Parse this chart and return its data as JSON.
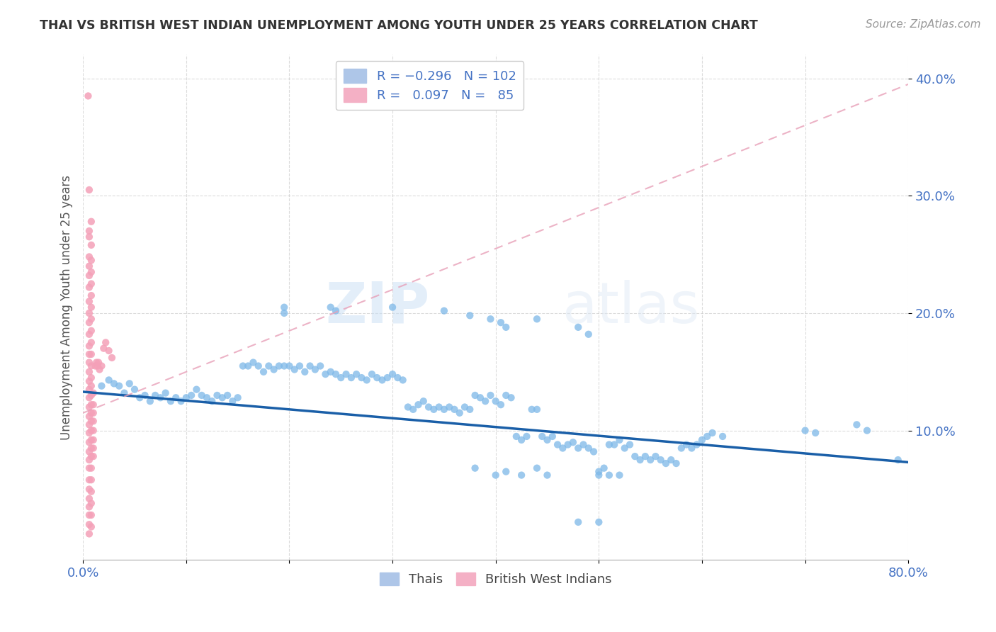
{
  "title": "THAI VS BRITISH WEST INDIAN UNEMPLOYMENT AMONG YOUTH UNDER 25 YEARS CORRELATION CHART",
  "source": "Source: ZipAtlas.com",
  "ylabel": "Unemployment Among Youth under 25 years",
  "yticks": [
    0.1,
    0.2,
    0.3,
    0.4
  ],
  "ytick_labels": [
    "10.0%",
    "20.0%",
    "30.0%",
    "40.0%"
  ],
  "xlim": [
    0.0,
    0.8
  ],
  "ylim": [
    -0.01,
    0.42
  ],
  "watermark_zip": "ZIP",
  "watermark_atlas": "atlas",
  "thai_dots_color": "#7db8e8",
  "bwi_dots_color": "#f4a0b8",
  "thai_line_color": "#1a5fa8",
  "bwi_line_color": "#e8a0b8",
  "thai_line_x0": 0.0,
  "thai_line_x1": 0.8,
  "thai_line_y0": 0.133,
  "thai_line_y1": 0.073,
  "bwi_line_x0": 0.0,
  "bwi_line_x1": 0.8,
  "bwi_line_y0": 0.115,
  "bwi_line_y1": 0.395,
  "thai_scatter": [
    [
      0.018,
      0.138
    ],
    [
      0.025,
      0.143
    ],
    [
      0.03,
      0.14
    ],
    [
      0.035,
      0.138
    ],
    [
      0.04,
      0.132
    ],
    [
      0.045,
      0.14
    ],
    [
      0.05,
      0.135
    ],
    [
      0.055,
      0.128
    ],
    [
      0.06,
      0.13
    ],
    [
      0.065,
      0.125
    ],
    [
      0.07,
      0.13
    ],
    [
      0.075,
      0.128
    ],
    [
      0.08,
      0.132
    ],
    [
      0.085,
      0.125
    ],
    [
      0.09,
      0.128
    ],
    [
      0.095,
      0.125
    ],
    [
      0.1,
      0.128
    ],
    [
      0.105,
      0.13
    ],
    [
      0.11,
      0.135
    ],
    [
      0.115,
      0.13
    ],
    [
      0.12,
      0.128
    ],
    [
      0.125,
      0.125
    ],
    [
      0.13,
      0.13
    ],
    [
      0.135,
      0.128
    ],
    [
      0.14,
      0.13
    ],
    [
      0.145,
      0.125
    ],
    [
      0.15,
      0.128
    ],
    [
      0.155,
      0.155
    ],
    [
      0.16,
      0.155
    ],
    [
      0.165,
      0.158
    ],
    [
      0.17,
      0.155
    ],
    [
      0.175,
      0.15
    ],
    [
      0.18,
      0.155
    ],
    [
      0.185,
      0.152
    ],
    [
      0.19,
      0.155
    ],
    [
      0.195,
      0.155
    ],
    [
      0.2,
      0.155
    ],
    [
      0.205,
      0.152
    ],
    [
      0.21,
      0.155
    ],
    [
      0.215,
      0.15
    ],
    [
      0.22,
      0.155
    ],
    [
      0.225,
      0.152
    ],
    [
      0.23,
      0.155
    ],
    [
      0.235,
      0.148
    ],
    [
      0.24,
      0.15
    ],
    [
      0.245,
      0.148
    ],
    [
      0.25,
      0.145
    ],
    [
      0.255,
      0.148
    ],
    [
      0.26,
      0.145
    ],
    [
      0.265,
      0.148
    ],
    [
      0.27,
      0.145
    ],
    [
      0.275,
      0.143
    ],
    [
      0.28,
      0.148
    ],
    [
      0.285,
      0.145
    ],
    [
      0.29,
      0.143
    ],
    [
      0.295,
      0.145
    ],
    [
      0.3,
      0.148
    ],
    [
      0.305,
      0.145
    ],
    [
      0.31,
      0.143
    ],
    [
      0.315,
      0.12
    ],
    [
      0.32,
      0.118
    ],
    [
      0.325,
      0.122
    ],
    [
      0.33,
      0.125
    ],
    [
      0.335,
      0.12
    ],
    [
      0.34,
      0.118
    ],
    [
      0.345,
      0.12
    ],
    [
      0.35,
      0.118
    ],
    [
      0.355,
      0.12
    ],
    [
      0.36,
      0.118
    ],
    [
      0.365,
      0.115
    ],
    [
      0.37,
      0.12
    ],
    [
      0.375,
      0.118
    ],
    [
      0.38,
      0.13
    ],
    [
      0.385,
      0.128
    ],
    [
      0.39,
      0.125
    ],
    [
      0.395,
      0.13
    ],
    [
      0.4,
      0.125
    ],
    [
      0.405,
      0.122
    ],
    [
      0.41,
      0.13
    ],
    [
      0.415,
      0.128
    ],
    [
      0.42,
      0.095
    ],
    [
      0.425,
      0.092
    ],
    [
      0.43,
      0.095
    ],
    [
      0.435,
      0.118
    ],
    [
      0.44,
      0.118
    ],
    [
      0.445,
      0.095
    ],
    [
      0.45,
      0.092
    ],
    [
      0.455,
      0.095
    ],
    [
      0.46,
      0.088
    ],
    [
      0.465,
      0.085
    ],
    [
      0.47,
      0.088
    ],
    [
      0.475,
      0.09
    ],
    [
      0.48,
      0.085
    ],
    [
      0.485,
      0.088
    ],
    [
      0.49,
      0.085
    ],
    [
      0.495,
      0.082
    ],
    [
      0.5,
      0.065
    ],
    [
      0.505,
      0.068
    ],
    [
      0.51,
      0.088
    ],
    [
      0.515,
      0.088
    ],
    [
      0.52,
      0.092
    ],
    [
      0.525,
      0.085
    ],
    [
      0.53,
      0.088
    ],
    [
      0.535,
      0.078
    ],
    [
      0.54,
      0.075
    ],
    [
      0.545,
      0.078
    ],
    [
      0.55,
      0.075
    ],
    [
      0.555,
      0.078
    ],
    [
      0.56,
      0.075
    ],
    [
      0.565,
      0.072
    ],
    [
      0.57,
      0.075
    ],
    [
      0.575,
      0.072
    ],
    [
      0.58,
      0.085
    ],
    [
      0.585,
      0.088
    ],
    [
      0.59,
      0.085
    ],
    [
      0.595,
      0.088
    ],
    [
      0.6,
      0.092
    ],
    [
      0.605,
      0.095
    ],
    [
      0.61,
      0.098
    ],
    [
      0.62,
      0.095
    ],
    [
      0.7,
      0.1
    ],
    [
      0.71,
      0.098
    ],
    [
      0.75,
      0.105
    ],
    [
      0.76,
      0.1
    ],
    [
      0.79,
      0.075
    ],
    [
      0.195,
      0.2
    ],
    [
      0.245,
      0.202
    ],
    [
      0.3,
      0.205
    ],
    [
      0.35,
      0.202
    ],
    [
      0.375,
      0.198
    ],
    [
      0.395,
      0.195
    ],
    [
      0.405,
      0.192
    ],
    [
      0.41,
      0.188
    ],
    [
      0.44,
      0.195
    ],
    [
      0.48,
      0.188
    ],
    [
      0.49,
      0.182
    ],
    [
      0.38,
      0.068
    ],
    [
      0.4,
      0.062
    ],
    [
      0.41,
      0.065
    ],
    [
      0.425,
      0.062
    ],
    [
      0.44,
      0.068
    ],
    [
      0.45,
      0.062
    ],
    [
      0.48,
      0.022
    ],
    [
      0.5,
      0.022
    ],
    [
      0.5,
      0.062
    ],
    [
      0.51,
      0.062
    ],
    [
      0.52,
      0.062
    ],
    [
      0.195,
      0.205
    ],
    [
      0.24,
      0.205
    ]
  ],
  "bwi_scatter": [
    [
      0.005,
      0.385
    ],
    [
      0.006,
      0.305
    ],
    [
      0.006,
      0.27
    ],
    [
      0.006,
      0.265
    ],
    [
      0.006,
      0.248
    ],
    [
      0.006,
      0.24
    ],
    [
      0.006,
      0.232
    ],
    [
      0.006,
      0.222
    ],
    [
      0.006,
      0.21
    ],
    [
      0.006,
      0.2
    ],
    [
      0.006,
      0.192
    ],
    [
      0.006,
      0.182
    ],
    [
      0.006,
      0.172
    ],
    [
      0.006,
      0.165
    ],
    [
      0.006,
      0.158
    ],
    [
      0.006,
      0.15
    ],
    [
      0.006,
      0.142
    ],
    [
      0.006,
      0.135
    ],
    [
      0.006,
      0.128
    ],
    [
      0.006,
      0.12
    ],
    [
      0.006,
      0.112
    ],
    [
      0.006,
      0.105
    ],
    [
      0.006,
      0.098
    ],
    [
      0.006,
      0.09
    ],
    [
      0.006,
      0.082
    ],
    [
      0.006,
      0.075
    ],
    [
      0.006,
      0.068
    ],
    [
      0.006,
      0.058
    ],
    [
      0.006,
      0.05
    ],
    [
      0.006,
      0.042
    ],
    [
      0.006,
      0.035
    ],
    [
      0.006,
      0.028
    ],
    [
      0.006,
      0.02
    ],
    [
      0.006,
      0.012
    ],
    [
      0.008,
      0.278
    ],
    [
      0.008,
      0.258
    ],
    [
      0.008,
      0.245
    ],
    [
      0.008,
      0.235
    ],
    [
      0.008,
      0.225
    ],
    [
      0.008,
      0.215
    ],
    [
      0.008,
      0.205
    ],
    [
      0.008,
      0.195
    ],
    [
      0.008,
      0.185
    ],
    [
      0.008,
      0.175
    ],
    [
      0.008,
      0.165
    ],
    [
      0.008,
      0.155
    ],
    [
      0.008,
      0.145
    ],
    [
      0.008,
      0.138
    ],
    [
      0.008,
      0.13
    ],
    [
      0.008,
      0.122
    ],
    [
      0.008,
      0.115
    ],
    [
      0.008,
      0.108
    ],
    [
      0.008,
      0.1
    ],
    [
      0.008,
      0.092
    ],
    [
      0.008,
      0.085
    ],
    [
      0.008,
      0.078
    ],
    [
      0.008,
      0.068
    ],
    [
      0.008,
      0.058
    ],
    [
      0.008,
      0.048
    ],
    [
      0.008,
      0.038
    ],
    [
      0.008,
      0.028
    ],
    [
      0.008,
      0.018
    ],
    [
      0.01,
      0.132
    ],
    [
      0.01,
      0.122
    ],
    [
      0.01,
      0.115
    ],
    [
      0.01,
      0.108
    ],
    [
      0.01,
      0.1
    ],
    [
      0.01,
      0.092
    ],
    [
      0.01,
      0.085
    ],
    [
      0.01,
      0.078
    ],
    [
      0.012,
      0.155
    ],
    [
      0.013,
      0.158
    ],
    [
      0.014,
      0.155
    ],
    [
      0.015,
      0.158
    ],
    [
      0.016,
      0.152
    ],
    [
      0.018,
      0.155
    ],
    [
      0.02,
      0.17
    ],
    [
      0.025,
      0.168
    ],
    [
      0.022,
      0.175
    ],
    [
      0.028,
      0.162
    ]
  ]
}
